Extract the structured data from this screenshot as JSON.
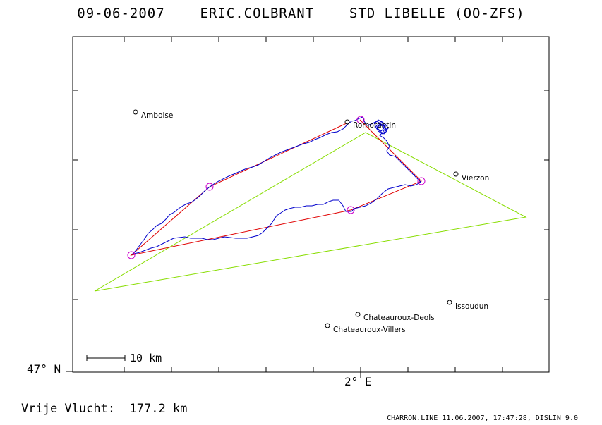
{
  "title": "09-06-2007    ERIC.COLBRANT    STD LIBELLE (OO-ZFS)",
  "axes": {
    "lat_label": "47° N",
    "lon_label": "2° E"
  },
  "scale_bar": {
    "label": "10 km"
  },
  "score": "Vrije Vlucht:  177.2 km",
  "footer": "CHARRON.LINE 11.06.2007, 17:47:28, DISLIN 9.0",
  "places": [
    {
      "name": "Amboise"
    },
    {
      "name": "Romorantin"
    },
    {
      "name": "Vierzon"
    },
    {
      "name": "Issoudun"
    },
    {
      "name": "Chateauroux-Deols"
    },
    {
      "name": "Chateauroux-Villers"
    }
  ],
  "colors": {
    "frame": "#000000",
    "track": "#0000cc",
    "task": "#e00000",
    "triangle": "#88dd00",
    "turnpoint": "#cc00cc"
  }
}
